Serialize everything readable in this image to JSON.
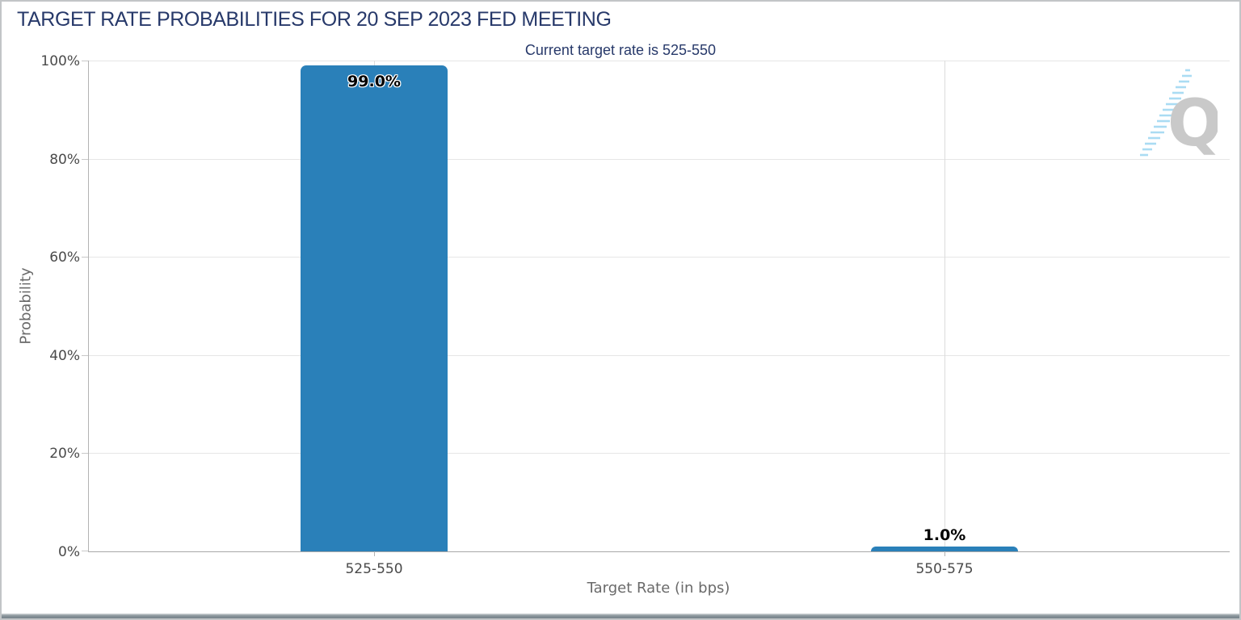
{
  "chart_data": {
    "type": "bar",
    "title": "TARGET RATE PROBABILITIES FOR 20 SEP 2023 FED MEETING",
    "subtitle": "Current target rate is 525-550",
    "categories": [
      "525-550",
      "550-575"
    ],
    "values": [
      99.0,
      1.0
    ],
    "value_labels": [
      "99.0%",
      "1.0%"
    ],
    "xlabel": "Target Rate (in bps)",
    "ylabel": "Probability",
    "ylim": [
      0,
      100
    ],
    "ytick_labels": [
      "100%",
      "80%",
      "60%",
      "40%",
      "20%",
      "0%"
    ],
    "grid": true,
    "legend": "none",
    "bar_color": "#2a80b9"
  },
  "logo": {
    "letter": "Q"
  },
  "colors": {
    "title_navy": "#27396a",
    "bar_blue": "#2a80b9",
    "axis_text": "#4a4a4a",
    "axis_title_gray": "#6a6a6a",
    "bottom_strip": "#76828a",
    "swoosh_blue": "#aadcf3",
    "logo_gray": "#c9c9c9"
  }
}
